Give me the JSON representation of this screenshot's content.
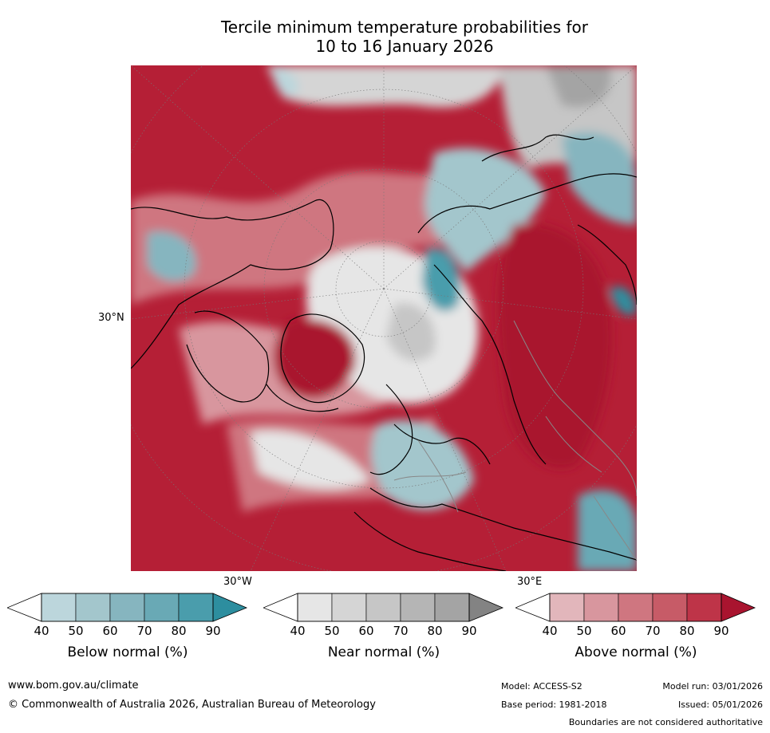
{
  "title": {
    "line1": "Tercile minimum temperature probabilities for",
    "line2": "10 to 16 January 2026"
  },
  "map": {
    "lat_label": "30°N",
    "lon_labels": {
      "west": "30°W",
      "east": "30°E"
    }
  },
  "colorbars": [
    {
      "name": "below",
      "label": "Below normal (%)",
      "ticks": [
        "40",
        "50",
        "60",
        "70",
        "80",
        "90"
      ],
      "colors": [
        "#bcd6dc",
        "#a3c6cc",
        "#86b5bf",
        "#69a9b5",
        "#4a9dac",
        "#2d8e9f"
      ]
    },
    {
      "name": "near",
      "label": "Near normal (%)",
      "ticks": [
        "40",
        "50",
        "60",
        "70",
        "80",
        "90"
      ],
      "colors": [
        "#e6e6e6",
        "#d5d5d5",
        "#c6c6c6",
        "#b5b5b5",
        "#a4a4a4",
        "#838383"
      ]
    },
    {
      "name": "above",
      "label": "Above normal (%)",
      "ticks": [
        "40",
        "50",
        "60",
        "70",
        "80",
        "90"
      ],
      "colors": [
        "#e2b6bb",
        "#d8969e",
        "#cf7680",
        "#c75b67",
        "#be3448",
        "#a9142f"
      ]
    }
  ],
  "footer": {
    "website": "www.bom.gov.au/climate",
    "copyright": "© Commonwealth of Australia 2026, Australian Bureau of Meteorology",
    "model": "Model: ACCESS-S2",
    "base_period": "Base period: 1981-2018",
    "model_run": "Model run: 03/01/2026",
    "issued": "Issued: 05/01/2026",
    "disclaimer": "Boundaries are not considered authoritative"
  }
}
